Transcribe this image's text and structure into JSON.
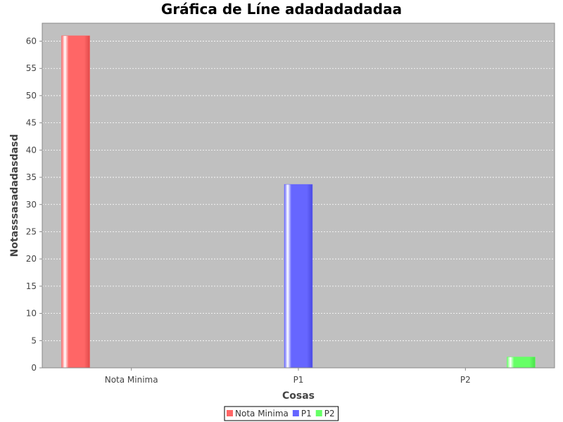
{
  "chart_data": {
    "type": "bar",
    "title": "Gráfica de Líne adadadadadaa",
    "xlabel": "Cosas",
    "ylabel": "Notasssasadadasdasd",
    "categories": [
      "Nota Minima",
      "P1",
      "P2"
    ],
    "series": [
      {
        "name": "Nota Minima",
        "color": "#ff6666",
        "values": [
          61,
          0,
          0
        ]
      },
      {
        "name": "P1",
        "color": "#6666ff",
        "values": [
          0,
          33.7,
          0
        ]
      },
      {
        "name": "P2",
        "color": "#66ff66",
        "values": [
          0,
          0,
          2
        ]
      }
    ],
    "ylim": [
      0,
      63.3
    ],
    "yticks": [
      0,
      5,
      10,
      15,
      20,
      25,
      30,
      35,
      40,
      45,
      50,
      55,
      60
    ],
    "grid": true,
    "legend_position": "bottom",
    "plot_background": "#c0c0c0"
  }
}
